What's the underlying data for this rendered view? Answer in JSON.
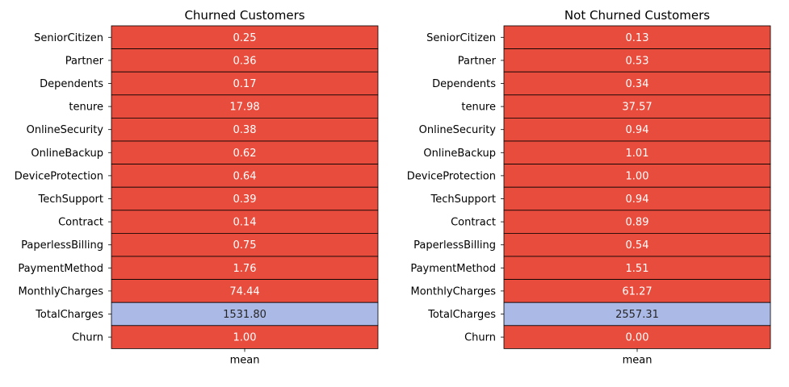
{
  "chart_data": [
    {
      "type": "heatmap",
      "title": "Churned Customers",
      "x_categories": [
        "mean"
      ],
      "y_categories": [
        "SeniorCitizen",
        "Partner",
        "Dependents",
        "tenure",
        "OnlineSecurity",
        "OnlineBackup",
        "DeviceProtection",
        "TechSupport",
        "Contract",
        "PaperlessBilling",
        "PaymentMethod",
        "MonthlyCharges",
        "TotalCharges",
        "Churn"
      ],
      "values": [
        0.25,
        0.36,
        0.17,
        17.98,
        0.38,
        0.62,
        0.64,
        0.39,
        0.14,
        0.75,
        1.76,
        74.44,
        1531.8,
        1.0
      ],
      "labels": [
        "0.25",
        "0.36",
        "0.17",
        "17.98",
        "0.38",
        "0.62",
        "0.64",
        "0.39",
        "0.14",
        "0.75",
        "1.76",
        "74.44",
        "1531.80",
        "1.00"
      ],
      "cell_colors": [
        "#e84c3d",
        "#e84c3d",
        "#e84c3d",
        "#e84c3d",
        "#e84c3d",
        "#e84c3d",
        "#e84c3d",
        "#e84c3d",
        "#e84c3d",
        "#e84c3d",
        "#e84c3d",
        "#e84c3d",
        "#abb9e6",
        "#e84c3d"
      ],
      "text_colors": [
        "#ffffff",
        "#ffffff",
        "#ffffff",
        "#ffffff",
        "#ffffff",
        "#ffffff",
        "#ffffff",
        "#ffffff",
        "#ffffff",
        "#ffffff",
        "#ffffff",
        "#ffffff",
        "#262626",
        "#ffffff"
      ],
      "colorbar": false
    },
    {
      "type": "heatmap",
      "title": "Not Churned Customers",
      "x_categories": [
        "mean"
      ],
      "y_categories": [
        "SeniorCitizen",
        "Partner",
        "Dependents",
        "tenure",
        "OnlineSecurity",
        "OnlineBackup",
        "DeviceProtection",
        "TechSupport",
        "Contract",
        "PaperlessBilling",
        "PaymentMethod",
        "MonthlyCharges",
        "TotalCharges",
        "Churn"
      ],
      "values": [
        0.13,
        0.53,
        0.34,
        37.57,
        0.94,
        1.01,
        1.0,
        0.94,
        0.89,
        0.54,
        1.51,
        61.27,
        2557.31,
        0.0
      ],
      "labels": [
        "0.13",
        "0.53",
        "0.34",
        "37.57",
        "0.94",
        "1.01",
        "1.00",
        "0.94",
        "0.89",
        "0.54",
        "1.51",
        "61.27",
        "2557.31",
        "0.00"
      ],
      "cell_colors": [
        "#e84c3d",
        "#e84c3d",
        "#e84c3d",
        "#e84c3d",
        "#e84c3d",
        "#e84c3d",
        "#e84c3d",
        "#e84c3d",
        "#e84c3d",
        "#e84c3d",
        "#e84c3d",
        "#e84c3d",
        "#abb9e6",
        "#e84c3d"
      ],
      "text_colors": [
        "#ffffff",
        "#ffffff",
        "#ffffff",
        "#ffffff",
        "#ffffff",
        "#ffffff",
        "#ffffff",
        "#ffffff",
        "#ffffff",
        "#ffffff",
        "#ffffff",
        "#ffffff",
        "#262626",
        "#ffffff"
      ],
      "colorbar": false
    }
  ]
}
